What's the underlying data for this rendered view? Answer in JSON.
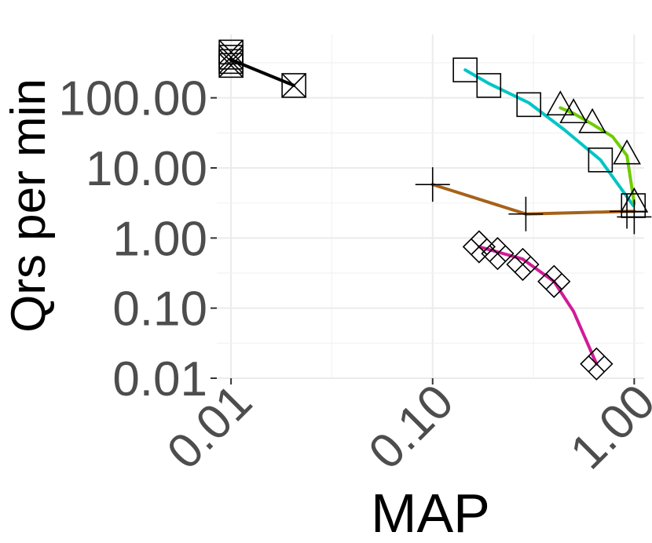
{
  "chart_data": {
    "type": "scatter",
    "title": "",
    "xlabel": "MAP",
    "ylabel": "Qrs per min",
    "x_scale": "log10",
    "y_scale": "log10",
    "xlim": [
      0.0085,
      1.12
    ],
    "ylim": [
      0.01,
      800
    ],
    "x_ticks": [
      0.01,
      0.1,
      1.0
    ],
    "x_tick_labels": [
      "0.01",
      "0.10",
      "1.00"
    ],
    "y_ticks": [
      0.01,
      0.1,
      1,
      10,
      100
    ],
    "y_tick_labels": [
      "0.01",
      "0.10",
      "1.00",
      "10.00",
      "100.00"
    ],
    "grid": true,
    "legend": "none",
    "series": [
      {
        "color": "#000000",
        "marker": "square-x",
        "points": [
          [
            0.01,
            450
          ],
          [
            0.01,
            380
          ],
          [
            0.01,
            330
          ],
          [
            0.01,
            290
          ],
          [
            0.0205,
            150
          ]
        ],
        "trend": [
          [
            0.01,
            350
          ],
          [
            0.0205,
            150
          ]
        ]
      },
      {
        "color": "#00c5c5",
        "marker": "square",
        "points": [
          [
            0.145,
            250
          ],
          [
            0.19,
            150
          ],
          [
            0.3,
            80
          ],
          [
            0.68,
            13
          ],
          [
            0.99,
            2.9
          ]
        ],
        "trend": [
          [
            0.145,
            250
          ],
          [
            0.19,
            160
          ],
          [
            0.3,
            85
          ],
          [
            0.45,
            35
          ],
          [
            0.68,
            13
          ],
          [
            0.99,
            2.9
          ]
        ]
      },
      {
        "color": "#6fcc00",
        "marker": "triangle",
        "points": [
          [
            0.43,
            75
          ],
          [
            0.5,
            58
          ],
          [
            0.62,
            42
          ],
          [
            0.92,
            15
          ],
          [
            1.0,
            3.1
          ]
        ],
        "trend": [
          [
            0.43,
            72
          ],
          [
            0.5,
            60
          ],
          [
            0.62,
            42
          ],
          [
            0.78,
            28
          ],
          [
            0.92,
            15
          ],
          [
            1.0,
            3.1
          ]
        ]
      },
      {
        "color": "#a56219",
        "marker": "plus",
        "points": [
          [
            0.1,
            5.8
          ],
          [
            0.29,
            2.2
          ],
          [
            0.92,
            2.4
          ],
          [
            1.0,
            2.0
          ]
        ],
        "trend": [
          [
            0.1,
            5.8
          ],
          [
            0.29,
            2.2
          ],
          [
            0.92,
            2.4
          ],
          [
            1.0,
            2.4
          ]
        ]
      },
      {
        "color": "#d21b96",
        "marker": "diamond-x",
        "points": [
          [
            0.17,
            0.75
          ],
          [
            0.21,
            0.6
          ],
          [
            0.28,
            0.42
          ],
          [
            0.4,
            0.24
          ],
          [
            0.65,
            0.016
          ]
        ],
        "trend": [
          [
            0.17,
            0.75
          ],
          [
            0.28,
            0.5
          ],
          [
            0.4,
            0.24
          ],
          [
            0.5,
            0.09
          ],
          [
            0.65,
            0.016
          ]
        ]
      }
    ]
  }
}
